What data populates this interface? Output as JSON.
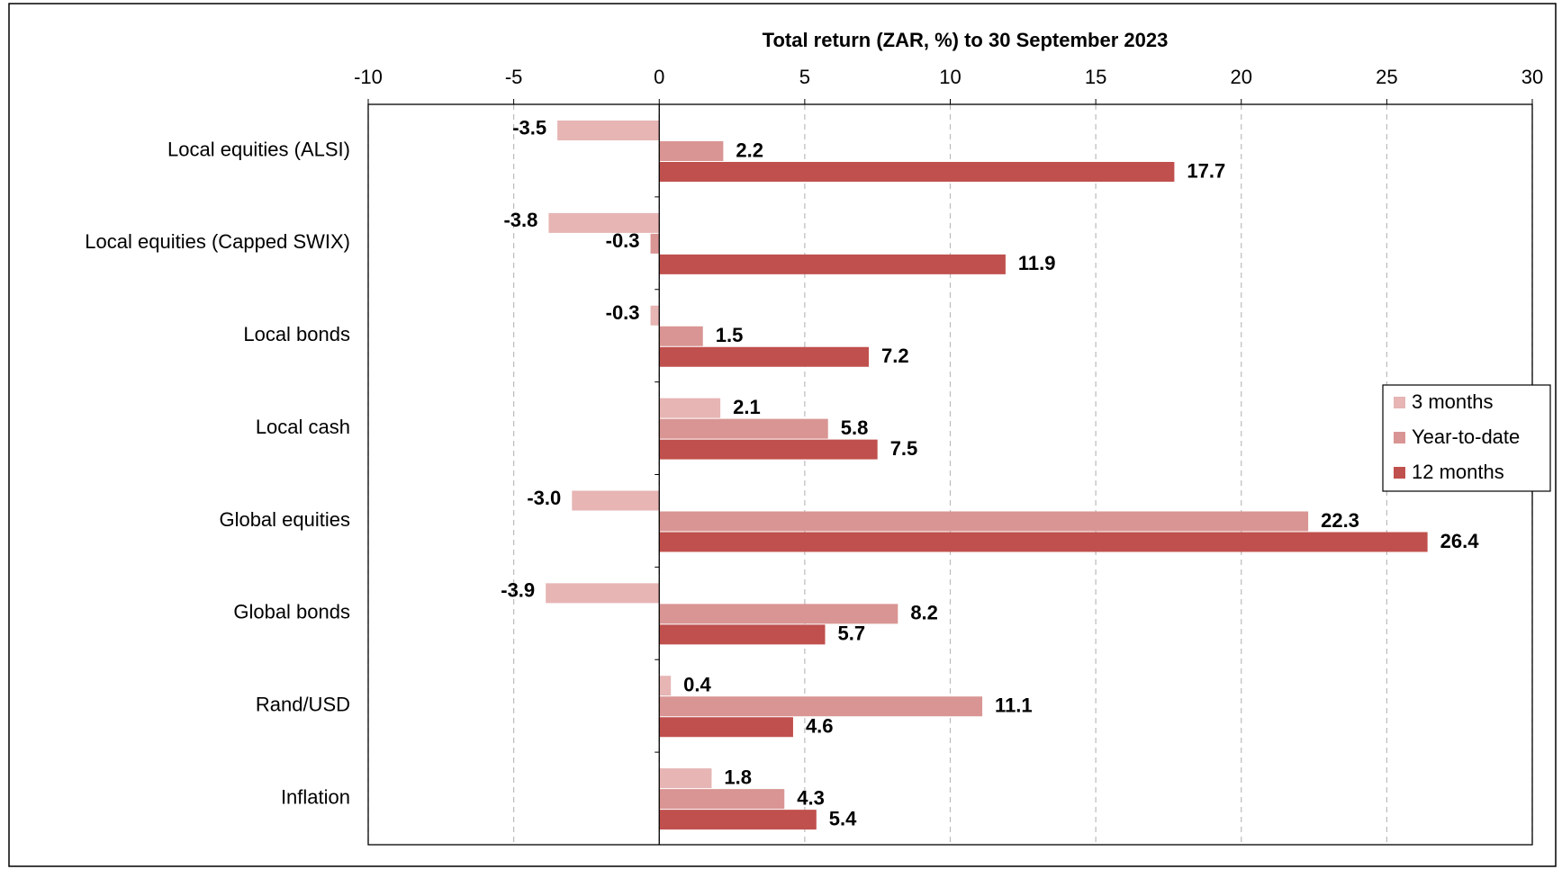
{
  "chart_data": {
    "type": "hbar",
    "title": "Total return (ZAR,  %) to 30 September 2023",
    "categories": [
      "Local equities (ALSI)",
      "Local equities (Capped SWIX)",
      "Local bonds",
      "Local cash",
      "Global equities",
      "Global bonds",
      "Rand/USD",
      "Inflation"
    ],
    "series": [
      {
        "name": "3 months",
        "color": "#e6b5b4",
        "values": [
          -3.5,
          -3.8,
          -0.3,
          2.1,
          -3.0,
          -3.9,
          0.4,
          1.8
        ],
        "value_labels": [
          "-3.5",
          "-3.8",
          "-0.3",
          "2.1",
          "-3.0",
          "-3.9",
          "0.4",
          "1.8"
        ]
      },
      {
        "name": "Year-to-date",
        "color": "#d99593",
        "values": [
          2.2,
          -0.3,
          1.5,
          5.8,
          22.3,
          8.2,
          11.1,
          4.3
        ],
        "value_labels": [
          "2.2",
          "-0.3",
          "1.5",
          "5.8",
          "22.3",
          "8.2",
          "11.1",
          "4.3"
        ]
      },
      {
        "name": "12 months",
        "color": "#c0504d",
        "values": [
          17.7,
          11.9,
          7.2,
          7.5,
          26.4,
          5.7,
          4.6,
          5.4
        ],
        "value_labels": [
          "17.7",
          "11.9",
          "7.2",
          "7.5",
          "26.4",
          "5.7",
          "4.6",
          "5.4"
        ]
      }
    ],
    "xlim": [
      -10,
      30
    ],
    "xticks": [
      -10,
      -5,
      0,
      5,
      10,
      15,
      20,
      25,
      30
    ],
    "grid": true,
    "legend": "right"
  }
}
